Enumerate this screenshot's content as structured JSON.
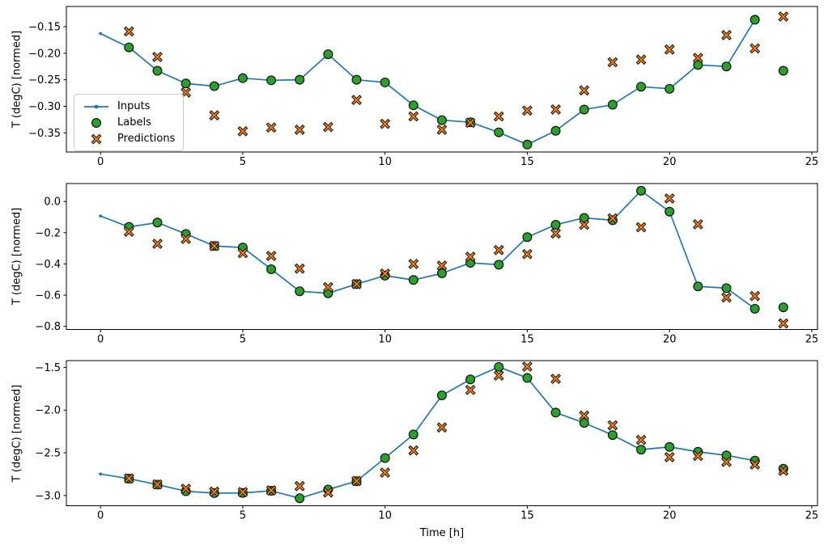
{
  "xlabel": "Time [h]",
  "colors": {
    "inputs_line": "#1f77b4",
    "labels_marker": "#2ca02c",
    "predictions_marker": "#ff7f0e",
    "marker_edge": "#111111",
    "axis": "#000000",
    "background": "#ffffff",
    "legend_border": "#cccccc"
  },
  "legend": {
    "items": [
      {
        "label": "Inputs",
        "marker": "line-dot",
        "color": "#1f77b4"
      },
      {
        "label": "Labels",
        "marker": "circle",
        "color": "#2ca02c",
        "edge_color": "#111111"
      },
      {
        "label": "Predictions",
        "marker": "x",
        "color": "#ff7f0e",
        "edge_color": "#111111"
      }
    ]
  },
  "chart_data": [
    {
      "type": "line",
      "title": "",
      "xlabel": "",
      "ylabel": "T (degC) [normed]",
      "xlim": [
        -1.2,
        25.2
      ],
      "ylim": [
        -0.386,
        -0.112
      ],
      "xticks": [
        0,
        5,
        10,
        15,
        20,
        25
      ],
      "xtick_labels": [
        "0",
        "5",
        "10",
        "15",
        "20",
        "25"
      ],
      "yticks": [
        -0.15,
        -0.2,
        -0.25,
        -0.3,
        -0.35
      ],
      "ytick_labels": [
        "−0.15",
        "−0.20",
        "−0.25",
        "−0.30",
        "−0.35"
      ],
      "grid": false,
      "series": [
        {
          "name": "Inputs",
          "type": "line",
          "x": [
            0,
            1,
            2,
            3,
            4,
            5,
            6,
            7,
            8,
            9,
            10,
            11,
            12,
            13,
            14,
            15,
            16,
            17,
            18,
            19,
            20,
            21,
            22,
            23
          ],
          "y": [
            -0.163,
            -0.189,
            -0.233,
            -0.257,
            -0.262,
            -0.247,
            -0.251,
            -0.25,
            -0.202,
            -0.25,
            -0.255,
            -0.298,
            -0.326,
            -0.33,
            -0.349,
            -0.372,
            -0.346,
            -0.306,
            -0.297,
            -0.263,
            -0.267,
            -0.222,
            -0.225,
            -0.137
          ]
        },
        {
          "name": "Labels",
          "type": "scatter_circle",
          "x": [
            1,
            2,
            3,
            4,
            5,
            6,
            7,
            8,
            9,
            10,
            11,
            12,
            13,
            14,
            15,
            16,
            17,
            18,
            19,
            20,
            21,
            22,
            23,
            24
          ],
          "y": [
            -0.189,
            -0.233,
            -0.257,
            -0.262,
            -0.247,
            -0.251,
            -0.25,
            -0.202,
            -0.25,
            -0.255,
            -0.298,
            -0.326,
            -0.33,
            -0.349,
            -0.372,
            -0.346,
            -0.306,
            -0.297,
            -0.263,
            -0.267,
            -0.222,
            -0.225,
            -0.137,
            -0.233
          ]
        },
        {
          "name": "Predictions",
          "type": "scatter_x",
          "x": [
            1,
            2,
            3,
            4,
            5,
            6,
            7,
            8,
            9,
            10,
            11,
            12,
            13,
            14,
            15,
            16,
            17,
            18,
            19,
            20,
            21,
            22,
            23,
            24
          ],
          "y": [
            -0.159,
            -0.207,
            -0.274,
            -0.317,
            -0.347,
            -0.34,
            -0.344,
            -0.339,
            -0.288,
            -0.333,
            -0.319,
            -0.344,
            -0.331,
            -0.319,
            -0.308,
            -0.306,
            -0.27,
            -0.217,
            -0.212,
            -0.193,
            -0.209,
            -0.166,
            -0.191,
            -0.131
          ]
        }
      ]
    },
    {
      "type": "line",
      "title": "",
      "xlabel": "",
      "ylabel": "T (degC) [normed]",
      "xlim": [
        -1.2,
        25.2
      ],
      "ylim": [
        -0.82,
        0.115
      ],
      "xticks": [
        0,
        5,
        10,
        15,
        20,
        25
      ],
      "xtick_labels": [
        "0",
        "5",
        "10",
        "15",
        "20",
        "25"
      ],
      "yticks": [
        0.0,
        -0.2,
        -0.4,
        -0.6,
        -0.8
      ],
      "ytick_labels": [
        "0.0",
        "−0.2",
        "−0.4",
        "−0.6",
        "−0.8"
      ],
      "grid": false,
      "series": [
        {
          "name": "Inputs",
          "type": "line",
          "x": [
            0,
            1,
            2,
            3,
            4,
            5,
            6,
            7,
            8,
            9,
            10,
            11,
            12,
            13,
            14,
            15,
            16,
            17,
            18,
            19,
            20,
            21,
            22,
            23
          ],
          "y": [
            -0.093,
            -0.163,
            -0.135,
            -0.208,
            -0.285,
            -0.295,
            -0.434,
            -0.575,
            -0.588,
            -0.529,
            -0.475,
            -0.503,
            -0.46,
            -0.393,
            -0.405,
            -0.228,
            -0.149,
            -0.105,
            -0.12,
            0.069,
            -0.065,
            -0.544,
            -0.555,
            -0.687
          ]
        },
        {
          "name": "Labels",
          "type": "scatter_circle",
          "x": [
            1,
            2,
            3,
            4,
            5,
            6,
            7,
            8,
            9,
            10,
            11,
            12,
            13,
            14,
            15,
            16,
            17,
            18,
            19,
            20,
            21,
            22,
            23,
            24
          ],
          "y": [
            -0.163,
            -0.135,
            -0.208,
            -0.285,
            -0.295,
            -0.434,
            -0.575,
            -0.588,
            -0.529,
            -0.475,
            -0.503,
            -0.46,
            -0.393,
            -0.405,
            -0.228,
            -0.149,
            -0.105,
            -0.12,
            0.069,
            -0.065,
            -0.544,
            -0.555,
            -0.687,
            -0.678
          ]
        },
        {
          "name": "Predictions",
          "type": "scatter_x",
          "x": [
            1,
            2,
            3,
            4,
            5,
            6,
            7,
            8,
            9,
            10,
            11,
            12,
            13,
            14,
            15,
            16,
            17,
            18,
            19,
            20,
            21,
            22,
            23,
            24
          ],
          "y": [
            -0.194,
            -0.271,
            -0.24,
            -0.285,
            -0.331,
            -0.349,
            -0.43,
            -0.549,
            -0.529,
            -0.462,
            -0.4,
            -0.411,
            -0.354,
            -0.311,
            -0.337,
            -0.205,
            -0.149,
            -0.108,
            -0.165,
            0.019,
            -0.146,
            -0.615,
            -0.606,
            -0.781
          ]
        }
      ]
    },
    {
      "type": "line",
      "title": "",
      "xlabel": "Time [h]",
      "ylabel": "T (degC) [normed]",
      "xlim": [
        -1.2,
        25.2
      ],
      "ylim": [
        -3.12,
        -1.42
      ],
      "xticks": [
        0,
        5,
        10,
        15,
        20,
        25
      ],
      "xtick_labels": [
        "0",
        "5",
        "10",
        "15",
        "20",
        "25"
      ],
      "yticks": [
        -1.5,
        -2.0,
        -2.5,
        -3.0
      ],
      "ytick_labels": [
        "−1.5",
        "−2.0",
        "−2.5",
        "−3.0"
      ],
      "grid": false,
      "series": [
        {
          "name": "Inputs",
          "type": "line",
          "x": [
            0,
            1,
            2,
            3,
            4,
            5,
            6,
            7,
            8,
            9,
            10,
            11,
            12,
            13,
            14,
            15,
            16,
            17,
            18,
            19,
            20,
            21,
            22,
            23
          ],
          "y": [
            -2.748,
            -2.803,
            -2.872,
            -2.95,
            -2.972,
            -2.97,
            -2.945,
            -3.032,
            -2.93,
            -2.832,
            -2.561,
            -2.285,
            -1.827,
            -1.64,
            -1.494,
            -1.623,
            -2.029,
            -2.149,
            -2.292,
            -2.463,
            -2.431,
            -2.488,
            -2.53,
            -2.592
          ]
        },
        {
          "name": "Labels",
          "type": "scatter_circle",
          "x": [
            1,
            2,
            3,
            4,
            5,
            6,
            7,
            8,
            9,
            10,
            11,
            12,
            13,
            14,
            15,
            16,
            17,
            18,
            19,
            20,
            21,
            22,
            23,
            24
          ],
          "y": [
            -2.803,
            -2.872,
            -2.95,
            -2.972,
            -2.97,
            -2.945,
            -3.032,
            -2.93,
            -2.832,
            -2.561,
            -2.285,
            -1.827,
            -1.64,
            -1.494,
            -1.623,
            -2.029,
            -2.149,
            -2.292,
            -2.463,
            -2.431,
            -2.488,
            -2.53,
            -2.592,
            -2.687
          ]
        },
        {
          "name": "Predictions",
          "type": "scatter_x",
          "x": [
            1,
            2,
            3,
            4,
            5,
            6,
            7,
            8,
            9,
            10,
            11,
            12,
            13,
            14,
            15,
            16,
            17,
            18,
            19,
            20,
            21,
            22,
            23,
            24
          ],
          "y": [
            -2.8,
            -2.87,
            -2.92,
            -2.955,
            -2.96,
            -2.94,
            -2.89,
            -2.965,
            -2.83,
            -2.732,
            -2.472,
            -2.203,
            -1.763,
            -1.595,
            -1.49,
            -1.633,
            -2.064,
            -2.178,
            -2.349,
            -2.551,
            -2.536,
            -2.606,
            -2.637,
            -2.71
          ]
        }
      ]
    }
  ]
}
